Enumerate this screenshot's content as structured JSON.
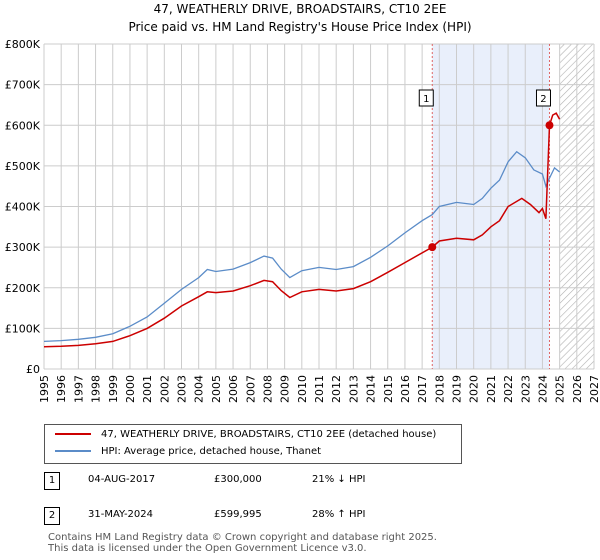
{
  "chart_data": {
    "type": "line",
    "title": "47, WEATHERLY DRIVE, BROADSTAIRS, CT10 2EE",
    "subtitle": "Price paid vs. HM Land Registry's House Price Index (HPI)",
    "xlabel": "",
    "ylabel": "",
    "xlim": [
      1995,
      2027
    ],
    "ylim": [
      0,
      800000
    ],
    "grid": true,
    "x_ticks": [
      "1995",
      "1996",
      "1997",
      "1998",
      "1999",
      "2000",
      "2001",
      "2002",
      "2003",
      "2004",
      "2005",
      "2006",
      "2007",
      "2008",
      "2009",
      "2010",
      "2011",
      "2012",
      "2013",
      "2014",
      "2015",
      "2016",
      "2017",
      "2018",
      "2019",
      "2020",
      "2021",
      "2022",
      "2023",
      "2024",
      "2025",
      "2026",
      "2027"
    ],
    "y_ticks": [
      {
        "value": 0,
        "label": "£0"
      },
      {
        "value": 100000,
        "label": "£100K"
      },
      {
        "value": 200000,
        "label": "£200K"
      },
      {
        "value": 300000,
        "label": "£300K"
      },
      {
        "value": 400000,
        "label": "£400K"
      },
      {
        "value": 500000,
        "label": "£500K"
      },
      {
        "value": 600000,
        "label": "£600K"
      },
      {
        "value": 700000,
        "label": "£700K"
      },
      {
        "value": 800000,
        "label": "£800K"
      }
    ],
    "highlight_span": [
      2017.59,
      2024.41
    ],
    "future_hatch_from": 2025.0,
    "series": [
      {
        "name": "47, WEATHERLY DRIVE, BROADSTAIRS, CT10 2EE (detached house)",
        "color": "#cc0000",
        "x": [
          1995,
          1996,
          1997,
          1998,
          1999,
          2000,
          2001,
          2002,
          2003,
          2004,
          2004.5,
          2005,
          2006,
          2007,
          2007.8,
          2008.3,
          2008.8,
          2009.3,
          2010,
          2011,
          2012,
          2013,
          2014,
          2015,
          2016,
          2017.59,
          2018,
          2019,
          2020,
          2020.5,
          2021,
          2021.5,
          2022,
          2022.8,
          2023.3,
          2023.8,
          2024.0,
          2024.2,
          2024.41,
          2024.6,
          2024.8,
          2025.0
        ],
        "values": [
          55000,
          56000,
          58000,
          62000,
          68000,
          82000,
          100000,
          125000,
          155000,
          178000,
          190000,
          188000,
          192000,
          205000,
          218000,
          215000,
          193000,
          176000,
          190000,
          196000,
          192000,
          198000,
          215000,
          238000,
          262000,
          300000,
          315000,
          322000,
          318000,
          330000,
          350000,
          365000,
          400000,
          420000,
          405000,
          385000,
          395000,
          370000,
          599995,
          625000,
          630000,
          615000
        ]
      },
      {
        "name": "HPI: Average price, detached house, Thanet",
        "color": "#5b8cc8",
        "x": [
          1995,
          1996,
          1997,
          1998,
          1999,
          2000,
          2001,
          2002,
          2003,
          2004,
          2004.5,
          2005,
          2006,
          2007,
          2007.8,
          2008.3,
          2008.8,
          2009.3,
          2010,
          2011,
          2012,
          2013,
          2014,
          2015,
          2016,
          2017,
          2017.59,
          2018,
          2019,
          2020,
          2020.5,
          2021,
          2021.5,
          2022,
          2022.5,
          2023,
          2023.5,
          2024,
          2024.2,
          2024.41,
          2024.7,
          2025.0
        ],
        "values": [
          68000,
          70000,
          73000,
          78000,
          87000,
          105000,
          128000,
          162000,
          196000,
          225000,
          245000,
          240000,
          246000,
          262000,
          278000,
          273000,
          246000,
          225000,
          242000,
          250000,
          245000,
          252000,
          275000,
          303000,
          335000,
          365000,
          380000,
          400000,
          410000,
          405000,
          420000,
          445000,
          465000,
          510000,
          535000,
          520000,
          490000,
          480000,
          450000,
          470000,
          495000,
          485000
        ]
      }
    ],
    "markers": [
      {
        "id": "1",
        "x": 2017.59,
        "value": 300000
      },
      {
        "id": "2",
        "x": 2024.41,
        "value": 599995
      }
    ]
  },
  "legend": {
    "items": [
      {
        "label": "47, WEATHERLY DRIVE, BROADSTAIRS, CT10 2EE (detached house)",
        "color": "#cc0000"
      },
      {
        "label": "HPI: Average price, detached house, Thanet",
        "color": "#5b8cc8"
      }
    ]
  },
  "transactions": [
    {
      "id": "1",
      "date": "04-AUG-2017",
      "price": "£300,000",
      "hpi": "21% ↓ HPI"
    },
    {
      "id": "2",
      "date": "31-MAY-2024",
      "price": "£599,995",
      "hpi": "28% ↑ HPI"
    }
  ],
  "footer": {
    "line1": "Contains HM Land Registry data © Crown copyright and database right 2025.",
    "line2": "This data is licensed under the Open Government Licence v3.0."
  }
}
